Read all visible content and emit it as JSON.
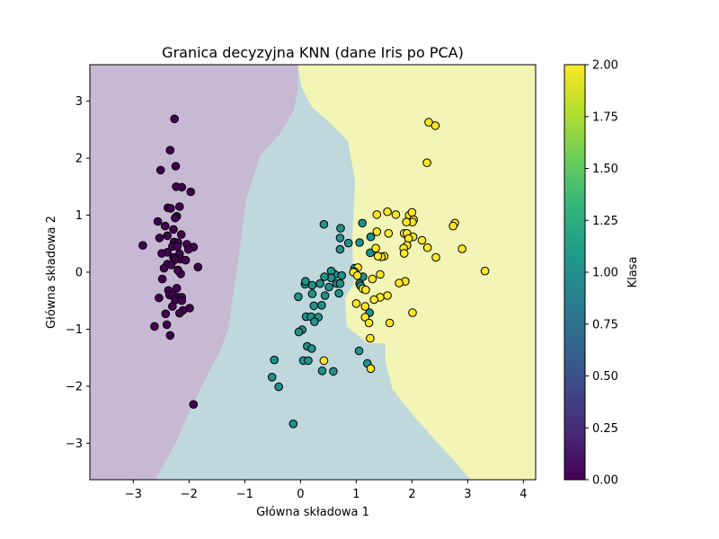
{
  "chart_data": {
    "type": "scatter",
    "title": "Granica decyzyjna KNN (dane Iris po PCA)",
    "xlabel": "Główna składowa 1",
    "ylabel": "Główna składowa 2",
    "xlim": [
      -3.78,
      4.22
    ],
    "ylim": [
      -3.64,
      3.64
    ],
    "xticks": [
      -3,
      -2,
      -1,
      0,
      1,
      2,
      3,
      4
    ],
    "yticks": [
      -3,
      -2,
      -1,
      0,
      1,
      2,
      3
    ],
    "xtick_labels": [
      "−3",
      "−2",
      "−1",
      "0",
      "1",
      "2",
      "3",
      "4"
    ],
    "ytick_labels": [
      "−3",
      "−2",
      "−1",
      "0",
      "1",
      "2",
      "3"
    ],
    "grid": false,
    "colorbar": {
      "label": "Klasa",
      "min": 0,
      "max": 2,
      "ticks": [
        0,
        0.25,
        0.5,
        0.75,
        1.0,
        1.25,
        1.5,
        1.75,
        2.0
      ],
      "tick_labels": [
        "0.00",
        "0.25",
        "0.50",
        "0.75",
        "1.00",
        "1.25",
        "1.50",
        "1.75",
        "2.00"
      ],
      "colormap": "viridis",
      "stops": [
        "#440154",
        "#482878",
        "#3e4989",
        "#31688e",
        "#26828e",
        "#1f9e89",
        "#35b779",
        "#6ece58",
        "#b5de2b",
        "#fde725"
      ]
    },
    "class_colors": [
      "#440154",
      "#21918c",
      "#fde725"
    ],
    "region_colors": [
      "#c7b9d3",
      "#bfd8dc",
      "#f2f5b6"
    ],
    "decision_regions": [
      {
        "class": 0,
        "polygon": [
          [
            -3.78,
            3.64
          ],
          [
            -0.05,
            3.64
          ],
          [
            -0.05,
            3.2
          ],
          [
            -0.12,
            2.85
          ],
          [
            -0.35,
            2.45
          ],
          [
            -0.72,
            2.05
          ],
          [
            -0.97,
            1.3
          ],
          [
            -1.1,
            0.35
          ],
          [
            -1.3,
            -1.0
          ],
          [
            -1.45,
            -1.4
          ],
          [
            -1.72,
            -1.9
          ],
          [
            -2.02,
            -2.5
          ],
          [
            -2.22,
            -2.95
          ],
          [
            -2.6,
            -3.64
          ],
          [
            -3.78,
            -3.64
          ]
        ]
      },
      {
        "class": 2,
        "polygon": [
          [
            -0.05,
            3.64
          ],
          [
            4.22,
            3.64
          ],
          [
            4.22,
            -3.64
          ],
          [
            3.05,
            -3.64
          ],
          [
            2.75,
            -3.3
          ],
          [
            2.05,
            -2.55
          ],
          [
            1.65,
            -2.05
          ],
          [
            1.52,
            -1.55
          ],
          [
            1.52,
            -1.25
          ],
          [
            1.2,
            -1.25
          ],
          [
            0.83,
            -0.95
          ],
          [
            0.8,
            -0.45
          ],
          [
            0.95,
            -0.2
          ],
          [
            0.93,
            0.6
          ],
          [
            0.98,
            1.6
          ],
          [
            0.85,
            2.3
          ],
          [
            0.55,
            2.6
          ],
          [
            0.2,
            2.9
          ],
          [
            0.02,
            3.25
          ]
        ]
      }
    ],
    "series": [
      {
        "class": 0,
        "points": [
          [
            -2.26,
            2.69
          ],
          [
            -2.34,
            2.14
          ],
          [
            -2.51,
            1.79
          ],
          [
            -2.24,
            1.86
          ],
          [
            -2.23,
            1.5
          ],
          [
            -2.13,
            1.49
          ],
          [
            -1.97,
            1.41
          ],
          [
            -2.38,
            1.13
          ],
          [
            -2.33,
            1.12
          ],
          [
            -2.17,
            1.15
          ],
          [
            -2.22,
            0.98
          ],
          [
            -2.25,
            0.95
          ],
          [
            -2.56,
            0.89
          ],
          [
            -2.43,
            0.81
          ],
          [
            -2.28,
            0.75
          ],
          [
            -2.39,
            0.64
          ],
          [
            -2.14,
            0.66
          ],
          [
            -2.53,
            0.6
          ],
          [
            -2.27,
            0.53
          ],
          [
            -2.2,
            0.52
          ],
          [
            -2.04,
            0.49
          ],
          [
            -2.3,
            0.45
          ],
          [
            -2.21,
            0.45
          ],
          [
            -2.83,
            0.47
          ],
          [
            -1.92,
            0.44
          ],
          [
            -2.01,
            0.4
          ],
          [
            -2.39,
            0.35
          ],
          [
            -2.49,
            0.33
          ],
          [
            -2.17,
            0.32
          ],
          [
            -2.28,
            0.26
          ],
          [
            -2.15,
            0.23
          ],
          [
            -2.25,
            0.22
          ],
          [
            -2.06,
            0.21
          ],
          [
            -2.39,
            0.14
          ],
          [
            -2.32,
            0.13
          ],
          [
            -1.84,
            0.09
          ],
          [
            -2.45,
            0.07
          ],
          [
            -2.2,
            0.04
          ],
          [
            -2.15,
            -0.03
          ],
          [
            -2.2,
            0.03
          ],
          [
            -2.48,
            -0.12
          ],
          [
            -2.22,
            -0.28
          ],
          [
            -2.37,
            -0.32
          ],
          [
            -2.35,
            -0.4
          ],
          [
            -2.29,
            -0.4
          ],
          [
            -2.2,
            -0.44
          ],
          [
            -2.13,
            -0.44
          ],
          [
            -2.54,
            -0.45
          ],
          [
            -2.25,
            -0.49
          ],
          [
            -2.13,
            -0.5
          ],
          [
            -2.3,
            -0.6
          ],
          [
            -1.99,
            -0.63
          ],
          [
            -2.11,
            -0.67
          ],
          [
            -2.17,
            -0.72
          ],
          [
            -2.42,
            -0.73
          ],
          [
            -2.4,
            -0.92
          ],
          [
            -2.62,
            -0.95
          ],
          [
            -2.34,
            -1.11
          ],
          [
            -1.92,
            -2.32
          ]
        ]
      },
      {
        "class": 1,
        "points": [
          [
            0.42,
            0.84
          ],
          [
            0.72,
            0.77
          ],
          [
            1.11,
            0.86
          ],
          [
            1.26,
            0.62
          ],
          [
            0.71,
            0.6
          ],
          [
            0.86,
            0.51
          ],
          [
            1.06,
            0.52
          ],
          [
            0.71,
            0.4
          ],
          [
            1.25,
            0.34
          ],
          [
            0.97,
            0.07
          ],
          [
            1.12,
            -0.08
          ],
          [
            0.62,
            -0.04
          ],
          [
            0.74,
            -0.06
          ],
          [
            0.55,
            0.02
          ],
          [
            0.55,
            -0.1
          ],
          [
            0.43,
            -0.08
          ],
          [
            0.35,
            -0.2
          ],
          [
            0.08,
            -0.21
          ],
          [
            0.09,
            -0.16
          ],
          [
            0.65,
            -0.2
          ],
          [
            0.21,
            -0.23
          ],
          [
            0.51,
            -0.26
          ],
          [
            0.71,
            -0.2
          ],
          [
            1.06,
            -0.2
          ],
          [
            0.21,
            -0.38
          ],
          [
            0.44,
            -0.41
          ],
          [
            0.69,
            -0.37
          ],
          [
            -0.04,
            -0.43
          ],
          [
            1.08,
            -0.24
          ],
          [
            0.24,
            -0.59
          ],
          [
            0.38,
            -0.58
          ],
          [
            0.1,
            -0.78
          ],
          [
            0.19,
            -0.78
          ],
          [
            0.32,
            -0.79
          ],
          [
            0.25,
            -0.87
          ],
          [
            0.03,
            -1.01
          ],
          [
            -0.03,
            -1.05
          ],
          [
            0.12,
            -1.3
          ],
          [
            0.2,
            -1.34
          ],
          [
            1.24,
            -0.71
          ],
          [
            1.05,
            -1.38
          ],
          [
            0.05,
            -1.55
          ],
          [
            0.14,
            -1.55
          ],
          [
            0.59,
            -1.74
          ],
          [
            0.39,
            -1.73
          ],
          [
            -0.47,
            -1.54
          ],
          [
            -0.51,
            -1.84
          ],
          [
            -0.39,
            -2.01
          ],
          [
            -0.13,
            -2.66
          ],
          [
            1.2,
            -1.6
          ]
        ]
      },
      {
        "class": 2,
        "points": [
          [
            2.3,
            2.63
          ],
          [
            2.42,
            2.57
          ],
          [
            2.27,
            1.92
          ],
          [
            1.37,
            1.01
          ],
          [
            1.56,
            1.06
          ],
          [
            1.71,
            1.01
          ],
          [
            1.95,
            1.0
          ],
          [
            2.0,
            1.05
          ],
          [
            2.03,
            0.92
          ],
          [
            2.01,
            0.88
          ],
          [
            1.9,
            0.88
          ],
          [
            2.77,
            0.86
          ],
          [
            2.74,
            0.81
          ],
          [
            1.37,
            0.71
          ],
          [
            1.58,
            0.68
          ],
          [
            1.86,
            0.68
          ],
          [
            1.91,
            0.68
          ],
          [
            2.02,
            0.62
          ],
          [
            1.94,
            0.59
          ],
          [
            2.18,
            0.56
          ],
          [
            1.35,
            0.42
          ],
          [
            1.91,
            0.47
          ],
          [
            2.28,
            0.43
          ],
          [
            1.85,
            0.42
          ],
          [
            2.9,
            0.41
          ],
          [
            1.86,
            0.33
          ],
          [
            1.5,
            0.28
          ],
          [
            1.45,
            0.27
          ],
          [
            2.43,
            0.26
          ],
          [
            1.39,
            0.28
          ],
          [
            1.03,
            0.08
          ],
          [
            0.97,
            0.01
          ],
          [
            0.95,
            0.0
          ],
          [
            1.02,
            -0.06
          ],
          [
            1.12,
            -0.29
          ],
          [
            1.43,
            -0.04
          ],
          [
            1.17,
            -0.31
          ],
          [
            1.29,
            -0.12
          ],
          [
            1.88,
            -0.16
          ],
          [
            1.77,
            -0.19
          ],
          [
            1.43,
            -0.44
          ],
          [
            1.56,
            -0.41
          ],
          [
            1.32,
            -0.48
          ],
          [
            1.0,
            -0.55
          ],
          [
            1.16,
            -0.6
          ],
          [
            1.16,
            -0.79
          ],
          [
            1.23,
            -0.89
          ],
          [
            1.6,
            -0.89
          ],
          [
            2.01,
            -0.71
          ],
          [
            1.25,
            -1.16
          ],
          [
            3.31,
            0.02
          ],
          [
            0.42,
            -1.55
          ],
          [
            1.26,
            -1.69
          ]
        ]
      }
    ]
  }
}
